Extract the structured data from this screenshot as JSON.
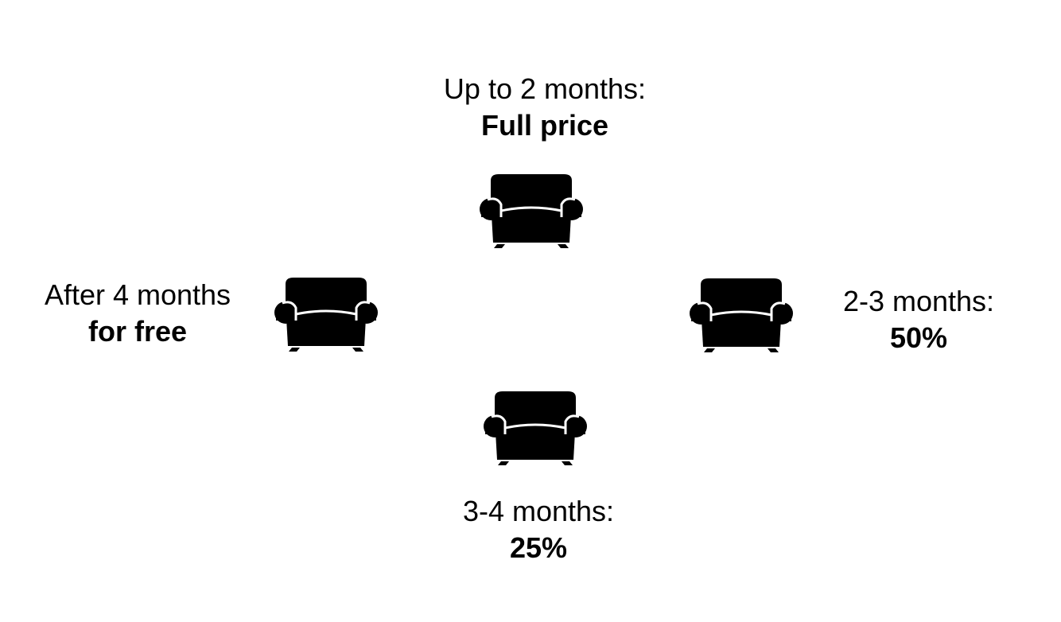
{
  "stages": {
    "top": {
      "period": "Up to 2 months:",
      "price": "Full price"
    },
    "right": {
      "period": "2-3 months:",
      "price": "50%"
    },
    "bottom": {
      "period": "3-4 months:",
      "price": "25%"
    },
    "left": {
      "period": "After 4 months",
      "price": "for free"
    }
  },
  "icons": {
    "sofa": "armchair-icon"
  },
  "colors": {
    "foreground": "#000000",
    "background": "#ffffff"
  }
}
